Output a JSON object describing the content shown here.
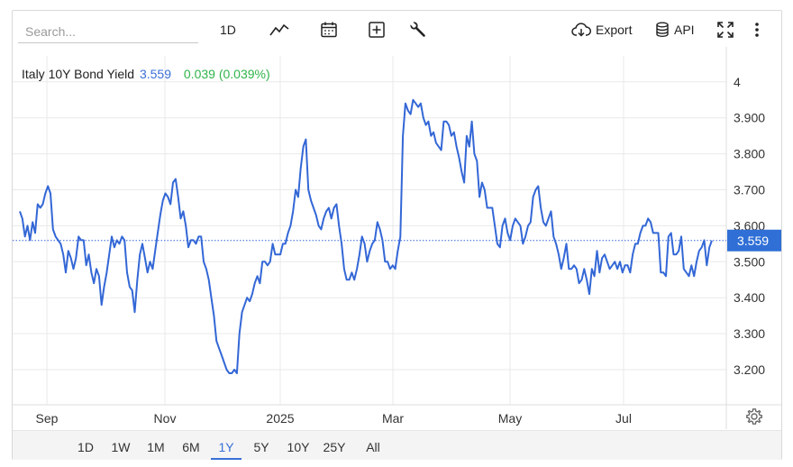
{
  "toolbar": {
    "search_placeholder": "Search...",
    "interval_label": "1D",
    "export_label": "Export",
    "api_label": "API"
  },
  "legend": {
    "name": "Italy 10Y Bond Yield",
    "last": "3.559",
    "change": "0.039 (0.039%)"
  },
  "range_buttons": [
    "1D",
    "1W",
    "1M",
    "6M",
    "1Y",
    "5Y",
    "10Y",
    "25Y",
    "All"
  ],
  "active_range": "1Y",
  "colors": {
    "line": "#3367d6",
    "last_tag": "#2f6fd6",
    "change": "#2fb44a",
    "grid": "#e9e9e9"
  },
  "chart_data": {
    "type": "line",
    "title": "Italy 10Y Bond Yield",
    "x_tick_labels": [
      "Sep",
      "Nov",
      "2025",
      "Mar",
      "May",
      "Jul"
    ],
    "y_tick_labels": [
      "4",
      "3.900",
      "3.800",
      "3.700",
      "3.600",
      "3.500",
      "3.400",
      "3.300",
      "3.200"
    ],
    "ylim": [
      3.1,
      4.05
    ],
    "last_value": 3.559,
    "grid": true,
    "series": [
      {
        "values": [
          3.64,
          3.62,
          3.57,
          3.6,
          3.56,
          3.61,
          3.58,
          3.66,
          3.65,
          3.66,
          3.69,
          3.71,
          3.69,
          3.59,
          3.57,
          3.56,
          3.55,
          3.52,
          3.47,
          3.53,
          3.51,
          3.48,
          3.51,
          3.57,
          3.56,
          3.56,
          3.49,
          3.52,
          3.47,
          3.44,
          3.48,
          3.46,
          3.38,
          3.43,
          3.47,
          3.52,
          3.57,
          3.54,
          3.56,
          3.55,
          3.57,
          3.56,
          3.47,
          3.43,
          3.42,
          3.36,
          3.45,
          3.52,
          3.55,
          3.51,
          3.47,
          3.5,
          3.48,
          3.53,
          3.58,
          3.63,
          3.67,
          3.69,
          3.68,
          3.66,
          3.72,
          3.73,
          3.68,
          3.62,
          3.64,
          3.6,
          3.54,
          3.56,
          3.56,
          3.55,
          3.57,
          3.57,
          3.5,
          3.48,
          3.45,
          3.4,
          3.35,
          3.28,
          3.26,
          3.24,
          3.22,
          3.2,
          3.19,
          3.19,
          3.2,
          3.19,
          3.3,
          3.36,
          3.38,
          3.4,
          3.39,
          3.41,
          3.44,
          3.46,
          3.44,
          3.5,
          3.5,
          3.49,
          3.5,
          3.55,
          3.52,
          3.52,
          3.52,
          3.55,
          3.55,
          3.58,
          3.6,
          3.64,
          3.7,
          3.68,
          3.76,
          3.82,
          3.84,
          3.7,
          3.67,
          3.65,
          3.63,
          3.6,
          3.59,
          3.62,
          3.64,
          3.65,
          3.62,
          3.65,
          3.66,
          3.6,
          3.55,
          3.48,
          3.45,
          3.45,
          3.47,
          3.45,
          3.48,
          3.52,
          3.57,
          3.55,
          3.5,
          3.53,
          3.55,
          3.56,
          3.61,
          3.59,
          3.56,
          3.5,
          3.5,
          3.48,
          3.49,
          3.48,
          3.53,
          3.57,
          3.85,
          3.94,
          3.92,
          3.91,
          3.95,
          3.94,
          3.93,
          3.94,
          3.9,
          3.88,
          3.89,
          3.85,
          3.86,
          3.83,
          3.82,
          3.81,
          3.89,
          3.89,
          3.88,
          3.85,
          3.86,
          3.82,
          3.79,
          3.75,
          3.72,
          3.85,
          3.82,
          3.89,
          3.8,
          3.78,
          3.68,
          3.72,
          3.7,
          3.65,
          3.65,
          3.65,
          3.6,
          3.55,
          3.54,
          3.6,
          3.62,
          3.58,
          3.56,
          3.6,
          3.62,
          3.61,
          3.6,
          3.55,
          3.57,
          3.6,
          3.61,
          3.68,
          3.7,
          3.71,
          3.65,
          3.61,
          3.6,
          3.62,
          3.64,
          3.57,
          3.55,
          3.52,
          3.48,
          3.51,
          3.55,
          3.48,
          3.48,
          3.49,
          3.48,
          3.44,
          3.45,
          3.48,
          3.45,
          3.41,
          3.48,
          3.46,
          3.53,
          3.47,
          3.51,
          3.52,
          3.5,
          3.48,
          3.49,
          3.5,
          3.48,
          3.5,
          3.47,
          3.49,
          3.49,
          3.47,
          3.52,
          3.55,
          3.55,
          3.58,
          3.6,
          3.6,
          3.62,
          3.61,
          3.58,
          3.58,
          3.58,
          3.47,
          3.47,
          3.46,
          3.57,
          3.58,
          3.52,
          3.52,
          3.53,
          3.57,
          3.48,
          3.47,
          3.46,
          3.49,
          3.46,
          3.5,
          3.53,
          3.54,
          3.56,
          3.49,
          3.54,
          3.559
        ]
      }
    ]
  }
}
